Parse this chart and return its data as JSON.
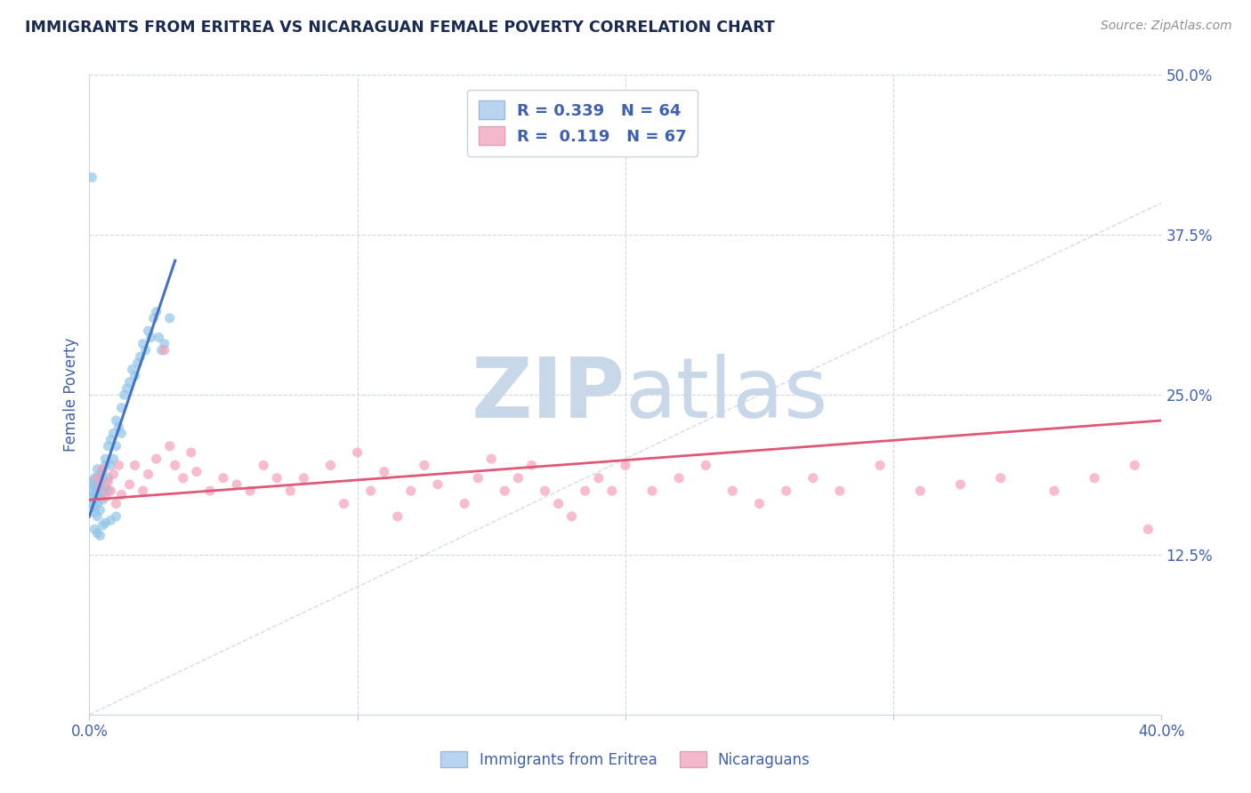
{
  "title": "IMMIGRANTS FROM ERITREA VS NICARAGUAN FEMALE POVERTY CORRELATION CHART",
  "source": "Source: ZipAtlas.com",
  "ylabel": "Female Poverty",
  "xlim": [
    0.0,
    0.4
  ],
  "ylim": [
    0.0,
    0.5
  ],
  "xticks": [
    0.0,
    0.1,
    0.2,
    0.3,
    0.4
  ],
  "yticks": [
    0.0,
    0.125,
    0.25,
    0.375,
    0.5
  ],
  "ytick_labels_right": [
    "",
    "12.5%",
    "25.0%",
    "37.5%",
    "50.0%"
  ],
  "r_eritrea": 0.339,
  "n_eritrea": 64,
  "r_nicaraguan": 0.119,
  "n_nicaraguan": 67,
  "color_eritrea": "#92c5e8",
  "color_nicaraguan": "#f4a0b8",
  "line_color_eritrea": "#4472c4",
  "line_color_nicaraguan": "#e05878",
  "diagonal_color": "#c8d4e0",
  "watermark_zip": "ZIP",
  "watermark_atlas": "atlas",
  "watermark_color": "#c8d8e8",
  "background_color": "#ffffff",
  "grid_color": "#c8d4e0",
  "legend_box_color_eritrea": "#b8d4f0",
  "legend_box_color_nicaraguan": "#f4b8cc",
  "legend_text_color": "#4060b0",
  "title_color": "#1a2a50",
  "axis_label_color": "#4060b0",
  "source_color": "#909090",
  "legend_label_eritrea": "Immigrants from Eritrea",
  "legend_label_nicaraguan": "Nicaraguans",
  "eritrea_x": [
    0.001,
    0.001,
    0.001,
    0.001,
    0.002,
    0.002,
    0.002,
    0.002,
    0.002,
    0.002,
    0.002,
    0.003,
    0.003,
    0.003,
    0.003,
    0.003,
    0.004,
    0.004,
    0.004,
    0.004,
    0.005,
    0.005,
    0.005,
    0.005,
    0.006,
    0.006,
    0.006,
    0.007,
    0.007,
    0.007,
    0.008,
    0.008,
    0.009,
    0.009,
    0.01,
    0.01,
    0.011,
    0.012,
    0.012,
    0.013,
    0.014,
    0.015,
    0.016,
    0.017,
    0.018,
    0.019,
    0.02,
    0.021,
    0.022,
    0.023,
    0.024,
    0.025,
    0.026,
    0.027,
    0.028,
    0.03,
    0.005,
    0.003,
    0.008,
    0.01,
    0.002,
    0.004,
    0.006,
    0.001
  ],
  "eritrea_y": [
    0.175,
    0.182,
    0.17,
    0.165,
    0.178,
    0.172,
    0.168,
    0.18,
    0.185,
    0.162,
    0.158,
    0.176,
    0.173,
    0.155,
    0.165,
    0.192,
    0.18,
    0.188,
    0.16,
    0.17,
    0.185,
    0.175,
    0.168,
    0.19,
    0.2,
    0.195,
    0.178,
    0.21,
    0.185,
    0.175,
    0.215,
    0.195,
    0.22,
    0.2,
    0.23,
    0.21,
    0.225,
    0.24,
    0.22,
    0.25,
    0.255,
    0.26,
    0.27,
    0.265,
    0.275,
    0.28,
    0.29,
    0.285,
    0.3,
    0.295,
    0.31,
    0.315,
    0.295,
    0.285,
    0.29,
    0.31,
    0.148,
    0.142,
    0.152,
    0.155,
    0.145,
    0.14,
    0.15,
    0.42
  ],
  "nicaraguan_x": [
    0.003,
    0.004,
    0.005,
    0.006,
    0.007,
    0.008,
    0.009,
    0.01,
    0.011,
    0.012,
    0.015,
    0.017,
    0.02,
    0.022,
    0.025,
    0.028,
    0.03,
    0.032,
    0.035,
    0.038,
    0.04,
    0.045,
    0.05,
    0.055,
    0.06,
    0.065,
    0.07,
    0.075,
    0.08,
    0.09,
    0.095,
    0.1,
    0.105,
    0.11,
    0.115,
    0.12,
    0.125,
    0.13,
    0.14,
    0.145,
    0.15,
    0.155,
    0.16,
    0.165,
    0.17,
    0.175,
    0.18,
    0.185,
    0.19,
    0.195,
    0.2,
    0.21,
    0.22,
    0.23,
    0.24,
    0.25,
    0.26,
    0.27,
    0.28,
    0.295,
    0.31,
    0.325,
    0.34,
    0.36,
    0.375,
    0.39,
    0.395
  ],
  "nicaraguan_y": [
    0.185,
    0.178,
    0.192,
    0.17,
    0.182,
    0.175,
    0.188,
    0.165,
    0.195,
    0.172,
    0.18,
    0.195,
    0.175,
    0.188,
    0.2,
    0.285,
    0.21,
    0.195,
    0.185,
    0.205,
    0.19,
    0.175,
    0.185,
    0.18,
    0.175,
    0.195,
    0.185,
    0.175,
    0.185,
    0.195,
    0.165,
    0.205,
    0.175,
    0.19,
    0.155,
    0.175,
    0.195,
    0.18,
    0.165,
    0.185,
    0.2,
    0.175,
    0.185,
    0.195,
    0.175,
    0.165,
    0.155,
    0.175,
    0.185,
    0.175,
    0.195,
    0.175,
    0.185,
    0.195,
    0.175,
    0.165,
    0.175,
    0.185,
    0.175,
    0.195,
    0.175,
    0.18,
    0.185,
    0.175,
    0.185,
    0.195,
    0.145
  ],
  "eritrea_line_x": [
    0.0,
    0.032
  ],
  "eritrea_line_y": [
    0.155,
    0.355
  ],
  "nicaraguan_line_x": [
    0.0,
    0.4
  ],
  "nicaraguan_line_y": [
    0.168,
    0.23
  ]
}
